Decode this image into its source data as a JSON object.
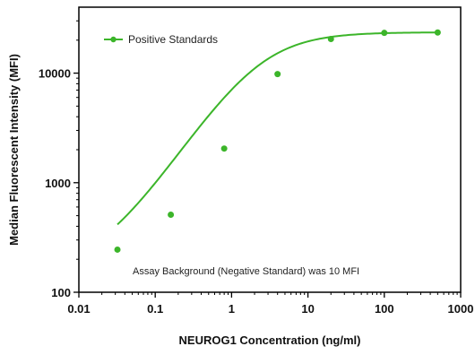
{
  "chart_data": {
    "type": "line",
    "xlabel": "NEUROG1 Concentration (ng/ml)",
    "ylabel": "Median Fluorescent Intensity (MFI)",
    "xscale": "log",
    "yscale": "log",
    "xlim": [
      0.01,
      1000
    ],
    "ylim": [
      100,
      40000
    ],
    "x_ticks": [
      "0.01",
      "0.1",
      "1",
      "10",
      "100",
      "1000"
    ],
    "y_ticks": [
      "100",
      "1000",
      "10000"
    ],
    "grid": false,
    "legend_position": "top-left",
    "series": [
      {
        "name": "Positive Standards",
        "color": "#3cb52a",
        "marker": "circle",
        "x": [
          0.032,
          0.16,
          0.8,
          4,
          20,
          100,
          500
        ],
        "y": [
          245,
          510,
          2050,
          9800,
          20500,
          23300,
          23500
        ],
        "fit_curve": {
          "model": "4PL",
          "bottom": 155,
          "top": 23600,
          "ec50": 2.3,
          "hill": 1.05
        }
      }
    ],
    "annotation": "Assay Background  (Negative Standard) was 10 MFI"
  }
}
